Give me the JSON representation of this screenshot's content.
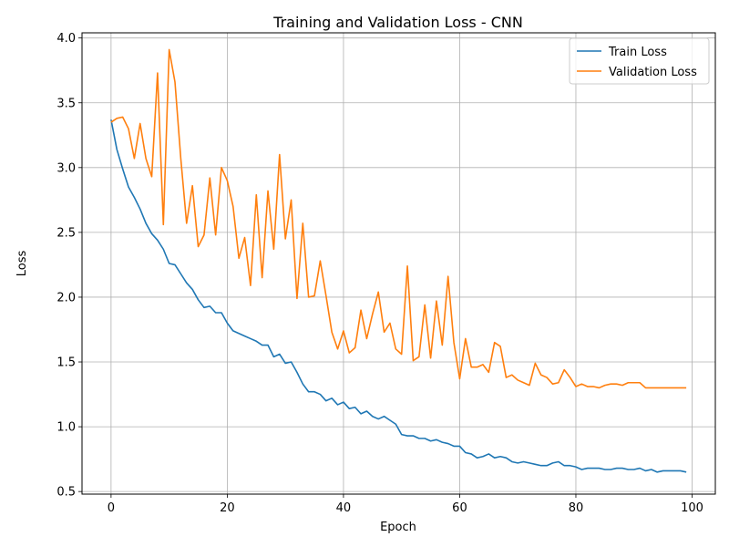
{
  "chart_data": {
    "type": "line",
    "title": "Training and Validation Loss - CNN",
    "xlabel": "Epoch",
    "ylabel": "Loss",
    "xlim": [
      -5,
      104
    ],
    "ylim": [
      0.48,
      4.04
    ],
    "xticks": [
      0,
      20,
      40,
      60,
      80,
      100
    ],
    "yticks": [
      0.5,
      1.0,
      1.5,
      2.0,
      2.5,
      3.0,
      3.5,
      4.0
    ],
    "xtick_labels": [
      "0",
      "20",
      "40",
      "60",
      "80",
      "100"
    ],
    "ytick_labels": [
      "0.5",
      "1.0",
      "1.5",
      "2.0",
      "2.5",
      "3.0",
      "3.5",
      "4.0"
    ],
    "grid": true,
    "legend_position": "top-right",
    "series": [
      {
        "name": "Train Loss",
        "color": "#1f77b4",
        "values": [
          3.37,
          3.14,
          2.99,
          2.85,
          2.77,
          2.68,
          2.57,
          2.49,
          2.44,
          2.37,
          2.26,
          2.25,
          2.18,
          2.11,
          2.06,
          1.98,
          1.92,
          1.93,
          1.88,
          1.88,
          1.8,
          1.74,
          1.72,
          1.7,
          1.68,
          1.66,
          1.63,
          1.63,
          1.54,
          1.56,
          1.49,
          1.5,
          1.42,
          1.33,
          1.27,
          1.27,
          1.25,
          1.2,
          1.22,
          1.17,
          1.19,
          1.14,
          1.15,
          1.1,
          1.12,
          1.08,
          1.06,
          1.08,
          1.05,
          1.02,
          0.94,
          0.93,
          0.93,
          0.91,
          0.91,
          0.89,
          0.9,
          0.88,
          0.87,
          0.85,
          0.85,
          0.8,
          0.79,
          0.76,
          0.77,
          0.79,
          0.76,
          0.77,
          0.76,
          0.73,
          0.72,
          0.73,
          0.72,
          0.71,
          0.7,
          0.7,
          0.72,
          0.73,
          0.7,
          0.7,
          0.69,
          0.67,
          0.68,
          0.68,
          0.68,
          0.67,
          0.67,
          0.68,
          0.68,
          0.67,
          0.67,
          0.68,
          0.66,
          0.67,
          0.65,
          0.66,
          0.66,
          0.66,
          0.66,
          0.65
        ]
      },
      {
        "name": "Validation Loss",
        "color": "#ff7f0e",
        "values": [
          3.35,
          3.38,
          3.39,
          3.3,
          3.07,
          3.34,
          3.07,
          2.93,
          3.73,
          2.56,
          3.91,
          3.66,
          3.07,
          2.57,
          2.86,
          2.39,
          2.48,
          2.92,
          2.48,
          3.0,
          2.9,
          2.7,
          2.3,
          2.46,
          2.09,
          2.79,
          2.15,
          2.82,
          2.37,
          3.1,
          2.45,
          2.75,
          1.99,
          2.57,
          2.0,
          2.01,
          2.28,
          2.01,
          1.73,
          1.6,
          1.74,
          1.57,
          1.61,
          1.9,
          1.68,
          1.87,
          2.04,
          1.73,
          1.8,
          1.6,
          1.56,
          2.24,
          1.51,
          1.54,
          1.94,
          1.53,
          1.97,
          1.63,
          2.16,
          1.65,
          1.37,
          1.68,
          1.46,
          1.46,
          1.48,
          1.42,
          1.65,
          1.62,
          1.38,
          1.4,
          1.36,
          1.34,
          1.32,
          1.49,
          1.4,
          1.38,
          1.33,
          1.34,
          1.44,
          1.38,
          1.31,
          1.33,
          1.31,
          1.31,
          1.3,
          1.32,
          1.33,
          1.33,
          1.32,
          1.34,
          1.34,
          1.34,
          1.3,
          1.3,
          1.3,
          1.3,
          1.3,
          1.3,
          1.3,
          1.3
        ]
      }
    ]
  }
}
